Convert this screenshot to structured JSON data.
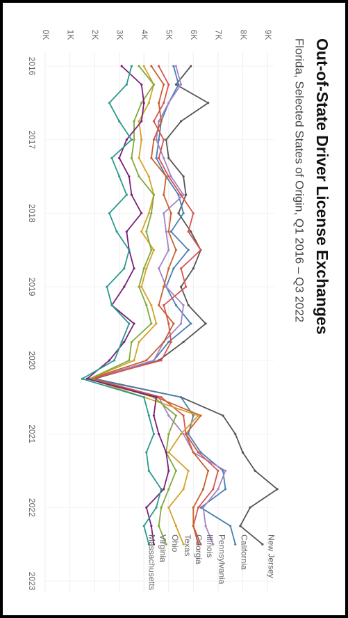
{
  "chart_data": {
    "type": "line",
    "title": "Out-of-State Driver License Exchanges",
    "subtitle": "Florida, Selected States of Origin, Q1 2016 – Q3 2022",
    "x": [
      2016,
      2016.25,
      2016.5,
      2016.75,
      2017,
      2017.25,
      2017.5,
      2017.75,
      2018,
      2018.25,
      2018.5,
      2018.75,
      2019,
      2019.25,
      2019.5,
      2019.75,
      2020,
      2020.25,
      2020.5,
      2020.75,
      2021,
      2021.25,
      2021.5,
      2021.75,
      2022,
      2022.25,
      2022.5
    ],
    "xlim": [
      2016,
      2023
    ],
    "xticks": [
      2016,
      2017,
      2018,
      2019,
      2020,
      2021,
      2022,
      2023
    ],
    "ylim": [
      0,
      9000
    ],
    "yticks": [
      {
        "value": 0,
        "label": "0K"
      },
      {
        "value": 1000,
        "label": "1K"
      },
      {
        "value": 2000,
        "label": "2K"
      },
      {
        "value": 3000,
        "label": "3K"
      },
      {
        "value": 4000,
        "label": "4K"
      },
      {
        "value": 5000,
        "label": "5K"
      },
      {
        "value": 6000,
        "label": "6K"
      },
      {
        "value": 7000,
        "label": "7K"
      },
      {
        "value": 8000,
        "label": "8K"
      },
      {
        "value": 9000,
        "label": "9K"
      }
    ],
    "grid": true,
    "series": [
      {
        "name": "New Jersey",
        "color": "#555555",
        "values": [
          5900,
          5300,
          6600,
          5500,
          4900,
          5000,
          5600,
          5700,
          5400,
          5900,
          6300,
          6000,
          5500,
          5800,
          6500,
          5600,
          4600,
          2000,
          5500,
          7200,
          7700,
          8000,
          8500,
          9400,
          8300,
          7900,
          8800
        ]
      },
      {
        "name": "California",
        "color": "#4a7fb0",
        "values": [
          5200,
          5400,
          5000,
          4700,
          4600,
          4500,
          4900,
          5400,
          5600,
          5100,
          5800,
          5200,
          4900,
          5300,
          5900,
          5000,
          4400,
          1900,
          5500,
          6000,
          5800,
          6300,
          7200,
          7300,
          6300,
          7500,
          7700
        ]
      },
      {
        "name": "Pennsylvania",
        "color": "#a483c9",
        "values": [
          5300,
          5500,
          5000,
          4600,
          4500,
          4800,
          5100,
          5600,
          4800,
          4900,
          5000,
          4600,
          4900,
          5600,
          5500,
          4800,
          4400,
          1900,
          4600,
          5000,
          5600,
          6000,
          7300,
          7000,
          6400,
          6500,
          6800
        ]
      },
      {
        "name": "Illinois",
        "color": "#d9534f",
        "values": [
          4600,
          5000,
          4800,
          4400,
          4800,
          4600,
          5000,
          5500,
          6000,
          5800,
          6300,
          5500,
          5700,
          4800,
          5000,
          5100,
          4700,
          1900,
          4700,
          5600,
          5700,
          6200,
          7000,
          6800,
          6200,
          6000,
          6300
        ]
      },
      {
        "name": "Georgia",
        "color": "#c9602f",
        "values": [
          4300,
          4800,
          4600,
          4700,
          4400,
          4300,
          4900,
          4800,
          5100,
          5000,
          5300,
          5000,
          4800,
          4600,
          5200,
          4800,
          4100,
          1800,
          4500,
          6300,
          5700,
          6000,
          6600,
          6400,
          6000,
          6000,
          6200
        ]
      },
      {
        "name": "Texas",
        "color": "#d4a22a",
        "values": [
          4000,
          4400,
          4200,
          3800,
          3900,
          3800,
          4200,
          4400,
          4200,
          3900,
          4400,
          4100,
          3900,
          4300,
          4500,
          3800,
          3600,
          1800,
          4000,
          6200,
          5500,
          5000,
          5800,
          5600,
          5000,
          5300,
          5600
        ]
      },
      {
        "name": "Ohio",
        "color": "#7faa3c",
        "values": [
          3800,
          4400,
          3900,
          3600,
          3600,
          3500,
          3800,
          4400,
          4300,
          4100,
          4300,
          4000,
          3800,
          4100,
          4300,
          3500,
          3400,
          1800,
          4400,
          5300,
          5000,
          4900,
          5300,
          5000,
          4700,
          4600,
          4900
        ]
      },
      {
        "name": "Virginia",
        "color": "#7a1f7a",
        "values": [
          3100,
          3900,
          4000,
          3900,
          3300,
          3000,
          3400,
          3500,
          3900,
          3300,
          3400,
          3600,
          3200,
          2700,
          3600,
          3200,
          2600,
          1700,
          4500,
          4400,
          4600,
          4900,
          5000,
          4800,
          4100,
          4300,
          4400
        ]
      },
      {
        "name": "Massachusetts",
        "color": "#2a9a8c",
        "values": [
          3500,
          3300,
          2600,
          3000,
          3500,
          2700,
          3000,
          3300,
          2600,
          2900,
          3400,
          3200,
          2500,
          2700,
          3400,
          3100,
          2800,
          1500,
          4000,
          4200,
          4400,
          4100,
          4200,
          4700,
          4500,
          4000,
          4200
        ]
      }
    ]
  }
}
